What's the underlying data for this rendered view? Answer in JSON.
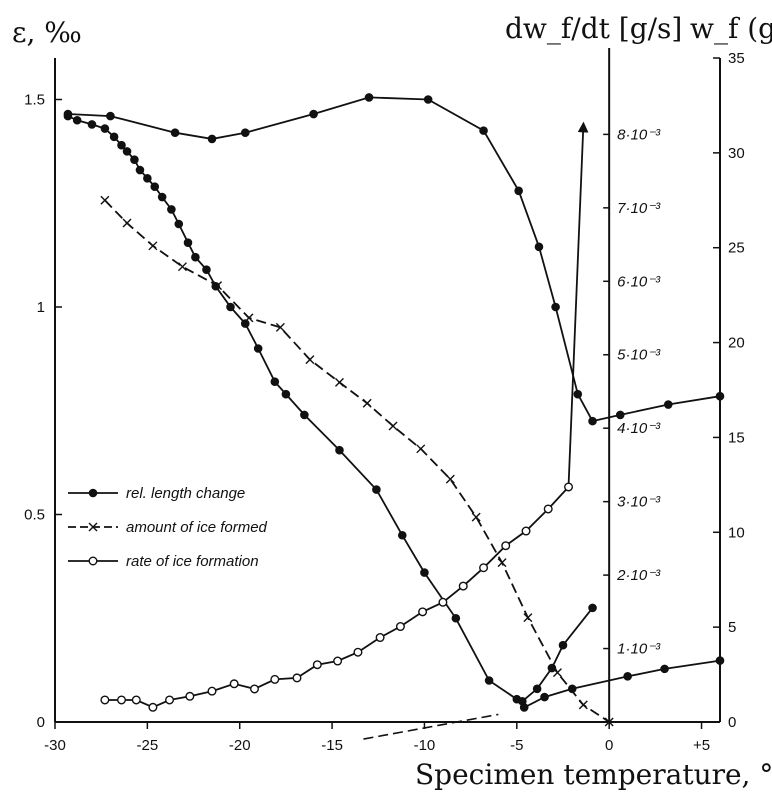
{
  "chart_data": {
    "type": "line",
    "xlabel": "Specimen temperature, °C",
    "ylabel_left": "ε, ‰",
    "ylabel_mid": "dw_f/dt [g/s]",
    "ylabel_right": "w_f (g)",
    "xlim": [
      -30,
      6
    ],
    "ylim_left": [
      0,
      1.6
    ],
    "ylim_mid": [
      0,
      0.00904
    ],
    "ylim_right": [
      0,
      35
    ],
    "x_ticks": [
      {
        "value": -30,
        "label": "-30"
      },
      {
        "value": -25,
        "label": "-25"
      },
      {
        "value": -20,
        "label": "-20"
      },
      {
        "value": -15,
        "label": "-15"
      },
      {
        "value": -10,
        "label": "-10"
      },
      {
        "value": -5,
        "label": "-5"
      },
      {
        "value": 0,
        "label": "0"
      },
      {
        "value": 5,
        "label": "+5"
      }
    ],
    "y_left_ticks": [
      {
        "value": 0,
        "label": "0"
      },
      {
        "value": 0.5,
        "label": "0.5"
      },
      {
        "value": 1,
        "label": "1"
      },
      {
        "value": 1.5,
        "label": "1.5"
      }
    ],
    "y_mid_ticks": [
      {
        "value": 0.001,
        "label": "1·10⁻³"
      },
      {
        "value": 0.002,
        "label": "2·10⁻³"
      },
      {
        "value": 0.003,
        "label": "3·10⁻³"
      },
      {
        "value": 0.004,
        "label": "4·10⁻³"
      },
      {
        "value": 0.005,
        "label": "5·10⁻³"
      },
      {
        "value": 0.006,
        "label": "6·10⁻³"
      },
      {
        "value": 0.007,
        "label": "7·10⁻³"
      },
      {
        "value": 0.008,
        "label": "8·10⁻³"
      }
    ],
    "y_right_ticks": [
      {
        "value": 0,
        "label": "0"
      },
      {
        "value": 5,
        "label": "5"
      },
      {
        "value": 10,
        "label": "10"
      },
      {
        "value": 15,
        "label": "15"
      },
      {
        "value": 20,
        "label": "20"
      },
      {
        "value": 25,
        "label": "25"
      },
      {
        "value": 30,
        "label": "30"
      },
      {
        "value": 35,
        "label": "35"
      }
    ],
    "legend": [
      {
        "label": "rel. length change",
        "marker": "filled-circle"
      },
      {
        "label": "amount of ice formed",
        "marker": "cross"
      },
      {
        "label": "rate of ice formation",
        "marker": "open-circle"
      }
    ],
    "series": [
      {
        "name": "rel. length change",
        "axis": "left",
        "marker": "filled-circle",
        "segments": [
          {
            "comment_free": true,
            "points": [
              [
                6,
                0.148
              ],
              [
                3,
                0.128
              ],
              [
                1,
                0.11
              ],
              [
                -2,
                0.08
              ],
              [
                -3.5,
                0.06
              ],
              [
                -4.6,
                0.035
              ],
              [
                -5,
                0.055
              ],
              [
                -6.5,
                0.1
              ],
              [
                -8.3,
                0.25
              ],
              [
                -10,
                0.36
              ],
              [
                -11.2,
                0.45
              ],
              [
                -12.6,
                0.56
              ],
              [
                -14.6,
                0.655
              ],
              [
                -16.5,
                0.74
              ],
              [
                -17.5,
                0.79
              ],
              [
                -18.1,
                0.82
              ],
              [
                -19,
                0.9
              ],
              [
                -19.7,
                0.96
              ],
              [
                -20.5,
                1.0
              ],
              [
                -21.3,
                1.05
              ],
              [
                -21.8,
                1.09
              ],
              [
                -22.4,
                1.12
              ],
              [
                -22.8,
                1.155
              ],
              [
                -23.3,
                1.2
              ],
              [
                -23.7,
                1.235
              ],
              [
                -24.2,
                1.265
              ],
              [
                -24.6,
                1.29
              ],
              [
                -25.0,
                1.31
              ],
              [
                -25.4,
                1.33
              ],
              [
                -25.7,
                1.355
              ],
              [
                -26.1,
                1.375
              ],
              [
                -26.4,
                1.39
              ],
              [
                -26.8,
                1.41
              ],
              [
                -27.3,
                1.43
              ],
              [
                -28,
                1.44
              ],
              [
                -28.8,
                1.45
              ],
              [
                -29.3,
                1.46
              ]
            ]
          },
          {
            "points": [
              [
                -29.3,
                1.465
              ],
              [
                -27,
                1.46
              ],
              [
                -23.5,
                1.42
              ],
              [
                -21.5,
                1.405
              ],
              [
                -19.7,
                1.42
              ],
              [
                -16,
                1.465
              ],
              [
                -13,
                1.505
              ],
              [
                -9.8,
                1.5
              ],
              [
                -6.8,
                1.425
              ],
              [
                -4.9,
                1.28
              ],
              [
                -3.8,
                1.145
              ],
              [
                -2.9,
                1.0
              ],
              [
                -1.7,
                0.79
              ],
              [
                -0.9,
                0.725
              ],
              [
                0.6,
                0.74
              ],
              [
                3.2,
                0.765
              ],
              [
                6,
                0.785
              ]
            ]
          },
          {
            "points": [
              [
                -4.7,
                0.05
              ],
              [
                -3.9,
                0.08
              ],
              [
                -3.1,
                0.13
              ],
              [
                -2.5,
                0.185
              ],
              [
                -0.9,
                0.275
              ]
            ]
          }
        ]
      },
      {
        "name": "amount of ice formed",
        "axis": "right",
        "marker": "cross",
        "segments": [
          {
            "points": [
              [
                -27.3,
                27.5
              ],
              [
                -26.1,
                26.3
              ],
              [
                -24.7,
                25.1
              ],
              [
                -23.1,
                24.0
              ],
              [
                -21.2,
                23.0
              ],
              [
                -19.5,
                21.3
              ],
              [
                -17.8,
                20.8
              ],
              [
                -16.2,
                19.1
              ],
              [
                -14.6,
                17.9
              ],
              [
                -13.1,
                16.8
              ],
              [
                -11.7,
                15.6
              ],
              [
                -10.2,
                14.4
              ],
              [
                -8.6,
                12.8
              ],
              [
                -7.2,
                10.8
              ],
              [
                -5.8,
                8.4
              ],
              [
                -4.4,
                5.5
              ],
              [
                -2.8,
                2.6
              ],
              [
                -1.4,
                0.9
              ],
              [
                0,
                0
              ]
            ]
          }
        ]
      },
      {
        "name": "rate of ice formation",
        "axis": "mid",
        "marker": "open-circle",
        "segments": [
          {
            "points": [
              [
                -27.3,
                0.0003
              ],
              [
                -26.4,
                0.0003
              ],
              [
                -25.6,
                0.0003
              ],
              [
                -24.7,
                0.0002
              ],
              [
                -23.8,
                0.0003
              ],
              [
                -22.7,
                0.00035
              ],
              [
                -21.5,
                0.00042
              ],
              [
                -20.3,
                0.00052
              ],
              [
                -19.2,
                0.00045
              ],
              [
                -18.1,
                0.00058
              ],
              [
                -16.9,
                0.0006
              ],
              [
                -15.8,
                0.00078
              ],
              [
                -14.7,
                0.00083
              ],
              [
                -13.6,
                0.00095
              ],
              [
                -12.4,
                0.00115
              ],
              [
                -11.3,
                0.0013
              ],
              [
                -10.1,
                0.0015
              ],
              [
                -9.0,
                0.00163
              ],
              [
                -7.9,
                0.00185
              ],
              [
                -6.8,
                0.0021
              ],
              [
                -5.6,
                0.0024
              ],
              [
                -4.5,
                0.0026
              ],
              [
                -3.3,
                0.0029
              ],
              [
                -2.2,
                0.0032
              ],
              [
                -1.4,
                0.0081
              ]
            ]
          }
        ]
      }
    ]
  }
}
